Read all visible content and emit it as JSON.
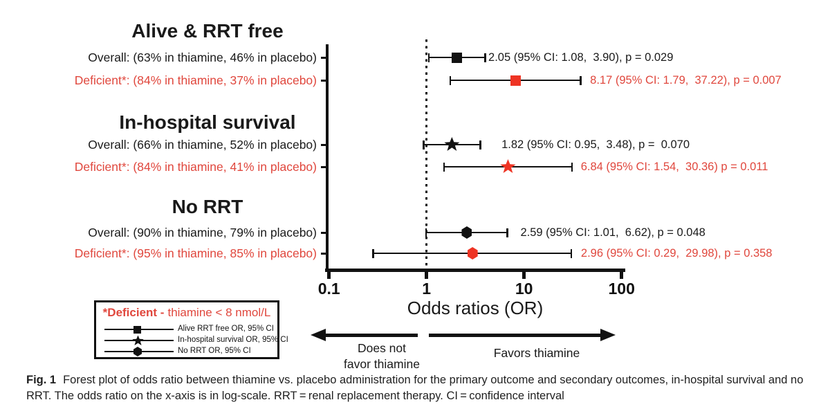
{
  "colors": {
    "red_marker": "#ee3424",
    "red_text": "#e0473d",
    "black": "#1a1a1a"
  },
  "figure": {
    "caption_prefix": "Fig. 1",
    "caption_body": "Forest plot of odds ratio between thiamine vs. placebo administration for the primary outcome and secondary outcomes, in-hospital survival and no RRT. The odds ratio on the x-axis is in log-scale. RRT = renal replacement therapy. CI = confidence interval"
  },
  "chart_data": {
    "type": "forest",
    "x_axis": {
      "label": "Odds ratios (OR)",
      "scale": "log10",
      "range": [
        0.1,
        100
      ],
      "tick_values": [
        0.1,
        1,
        10,
        100
      ],
      "tick_labels": [
        "0.1",
        "1",
        "10",
        "100"
      ],
      "reference_line": 1
    },
    "direction_labels": {
      "left_line1": "Does not",
      "left_line2": "favor thiamine",
      "right": "Favors thiamine"
    },
    "groups": [
      {
        "heading": "Alive & RRT free",
        "rows": [
          {
            "label": "Overall: (63% in thiamine, 46% in placebo)",
            "or": 2.05,
            "ci_low": 1.08,
            "ci_high": 3.9,
            "annotation": "2.05 (95% CI: 1.08,  3.90), p = 0.029",
            "marker": "square",
            "color": "black"
          },
          {
            "label": "Deficient*: (84% in thiamine, 37% in placebo)",
            "or": 8.17,
            "ci_low": 1.79,
            "ci_high": 37.22,
            "annotation": "8.17 (95% CI: 1.79,  37.22), p = 0.007",
            "marker": "square",
            "color": "red"
          }
        ]
      },
      {
        "heading": "In-hospital survival",
        "rows": [
          {
            "label": "Overall: (66% in thiamine, 52% in placebo)",
            "or": 1.82,
            "ci_low": 0.95,
            "ci_high": 3.48,
            "annotation": "1.82 (95% CI: 0.95,  3.48), p =  0.070",
            "marker": "star",
            "color": "black"
          },
          {
            "label": "Deficient*: (84% in thiamine, 41% in placebo)",
            "or": 6.84,
            "ci_low": 1.54,
            "ci_high": 30.36,
            "annotation": "6.84 (95% CI: 1.54,  30.36) p = 0.011",
            "marker": "star",
            "color": "red"
          }
        ]
      },
      {
        "heading": "No RRT",
        "rows": [
          {
            "label": "Overall: (90% in thiamine, 79% in placebo)",
            "or": 2.59,
            "ci_low": 1.01,
            "ci_high": 6.62,
            "annotation": "2.59 (95% CI: 1.01,  6.62), p = 0.048",
            "marker": "hexagon",
            "color": "black"
          },
          {
            "label": "Deficient*: (95% in thiamine, 85% in placebo)",
            "or": 2.96,
            "ci_low": 0.29,
            "ci_high": 29.98,
            "annotation": "2.96 (95% CI: 0.29,  29.98), p = 0.358",
            "marker": "hexagon",
            "color": "red"
          }
        ]
      }
    ],
    "legend": {
      "title_bold": "*Deficient -",
      "title_rest": "thiamine < 8 nmol/L",
      "items": [
        {
          "marker": "square",
          "label": "Alive RRT free OR, 95% CI"
        },
        {
          "marker": "star",
          "label": "In-hospital survival OR, 95% CI"
        },
        {
          "marker": "hexagon",
          "label": "No RRT OR, 95% CI"
        }
      ]
    }
  }
}
